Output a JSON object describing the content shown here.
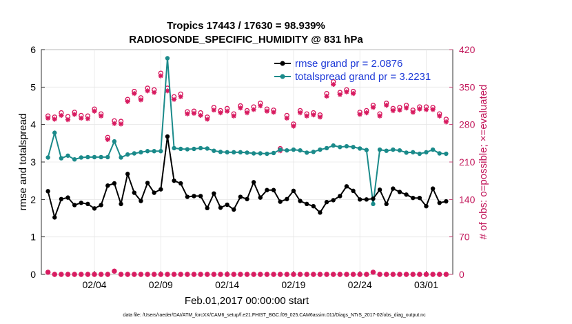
{
  "chart_data": {
    "type": "line",
    "title": "Tropics 17443 / 17630 = 98.939%",
    "subtitle": "RADIOSONDE_SPECIFIC_HUMIDITY @ 831 hPa",
    "xlabel": "Feb.01,2017 00:00:00 start",
    "ylabel": "rmse and totalspread",
    "ylabel_right": "# of obs: o=possible; ×=evaluated",
    "xlim": [
      1,
      32
    ],
    "ylim": [
      0,
      6
    ],
    "ylim_right": [
      0,
      420
    ],
    "x_ticks": [
      {
        "x": 5,
        "label": "02/04"
      },
      {
        "x": 10,
        "label": "02/09"
      },
      {
        "x": 15,
        "label": "02/14"
      },
      {
        "x": 20,
        "label": "02/19"
      },
      {
        "x": 25,
        "label": "02/24"
      },
      {
        "x": 30,
        "label": "03/01"
      }
    ],
    "y_ticks": [
      "0",
      "1",
      "2",
      "3",
      "4",
      "5",
      "6"
    ],
    "y_ticks_right": [
      "0",
      "70",
      "140",
      "210",
      "280",
      "350",
      "420"
    ],
    "legend": {
      "rmse": "rmse grand pr = 2.0876",
      "spread": "totalspread grand pr = 3.2231"
    },
    "footnote": "data file: /Users/raeder/DAI/ATM_forcXX/CAM6_setup/f.e21.FHIST_BGC.f09_025.CAM6assim.011/Diags_NTrS_2017-02/obs_diag_output.nc",
    "x_step": 0.5,
    "series": [
      {
        "name": "rmse",
        "color": "#000000",
        "values": [
          2.22,
          1.52,
          2.01,
          2.05,
          1.85,
          1.91,
          1.88,
          1.76,
          1.85,
          2.37,
          2.43,
          1.88,
          2.68,
          2.18,
          1.96,
          2.44,
          2.18,
          2.27,
          3.68,
          2.5,
          2.43,
          2.07,
          2.09,
          2.09,
          1.77,
          2.16,
          1.78,
          1.86,
          1.73,
          2.07,
          2.01,
          2.46,
          2.05,
          2.25,
          2.25,
          1.94,
          2.01,
          2.23,
          1.96,
          1.88,
          1.82,
          1.65,
          1.93,
          1.98,
          2.09,
          2.35,
          2.23,
          2.0,
          2.0,
          2.02,
          2.26,
          1.88,
          2.29,
          2.2,
          2.13,
          2.04,
          2.04,
          1.82,
          2.29,
          1.91,
          1.95
        ]
      },
      {
        "name": "totalspread",
        "color": "#1a8a8a",
        "values": [
          3.12,
          3.78,
          3.1,
          3.17,
          3.07,
          3.12,
          3.13,
          3.13,
          3.13,
          3.13,
          3.55,
          3.12,
          3.2,
          3.23,
          3.26,
          3.29,
          3.29,
          3.29,
          5.77,
          3.37,
          3.35,
          3.34,
          3.35,
          3.37,
          3.36,
          3.3,
          3.27,
          3.26,
          3.26,
          3.26,
          3.25,
          3.23,
          3.23,
          3.22,
          3.24,
          3.33,
          3.31,
          3.33,
          3.31,
          3.25,
          3.27,
          3.33,
          3.37,
          3.44,
          3.4,
          3.42,
          3.4,
          3.36,
          3.32,
          1.88,
          3.33,
          3.3,
          3.33,
          3.31,
          3.25,
          3.26,
          3.22,
          3.26,
          3.33,
          3.23,
          3.22
        ]
      },
      {
        "name": "possible obs",
        "color": "#d81b60",
        "values": [
          296,
          294,
          302,
          295,
          303,
          297,
          296,
          309,
          300,
          256,
          287,
          286,
          327,
          342,
          330,
          348,
          345,
          376,
          348,
          332,
          337,
          304,
          305,
          302,
          294,
          312,
          306,
          310,
          300,
          315,
          306,
          313,
          320,
          309,
          307,
          235,
          297,
          281,
          306,
          300,
          302,
          298,
          338,
          360,
          340,
          345,
          342,
          303,
          306,
          316,
          300,
          320,
          310,
          312,
          316,
          307,
          313,
          313,
          312,
          300,
          290
        ]
      },
      {
        "name": "evaluated obs",
        "color": "#d81b60",
        "values": [
          292,
          290,
          297,
          289,
          299,
          292,
          291,
          305,
          296,
          252,
          282,
          281,
          323,
          338,
          326,
          343,
          340,
          371,
          343,
          327,
          332,
          300,
          301,
          297,
          290,
          307,
          302,
          305,
          296,
          311,
          302,
          308,
          315,
          305,
          303,
          231,
          292,
          277,
          302,
          296,
          298,
          294,
          333,
          355,
          336,
          341,
          338,
          299,
          302,
          312,
          296,
          316,
          306,
          307,
          311,
          303,
          309,
          308,
          308,
          296,
          285
        ]
      },
      {
        "name": "possible obs (low)",
        "color": "#d81b60",
        "values": [
          4,
          0,
          0,
          0,
          0,
          0,
          0,
          0,
          0,
          0,
          6,
          0,
          0,
          0,
          0,
          0,
          0,
          0,
          0,
          0,
          0,
          0,
          0,
          0,
          0,
          0,
          0,
          0,
          0,
          0,
          0,
          0,
          0,
          0,
          0,
          0,
          0,
          0,
          0,
          0,
          0,
          0,
          0,
          0,
          0,
          0,
          0,
          0,
          0,
          4,
          0,
          0,
          0,
          0,
          0,
          0,
          0,
          0,
          0,
          0,
          0
        ]
      }
    ]
  }
}
